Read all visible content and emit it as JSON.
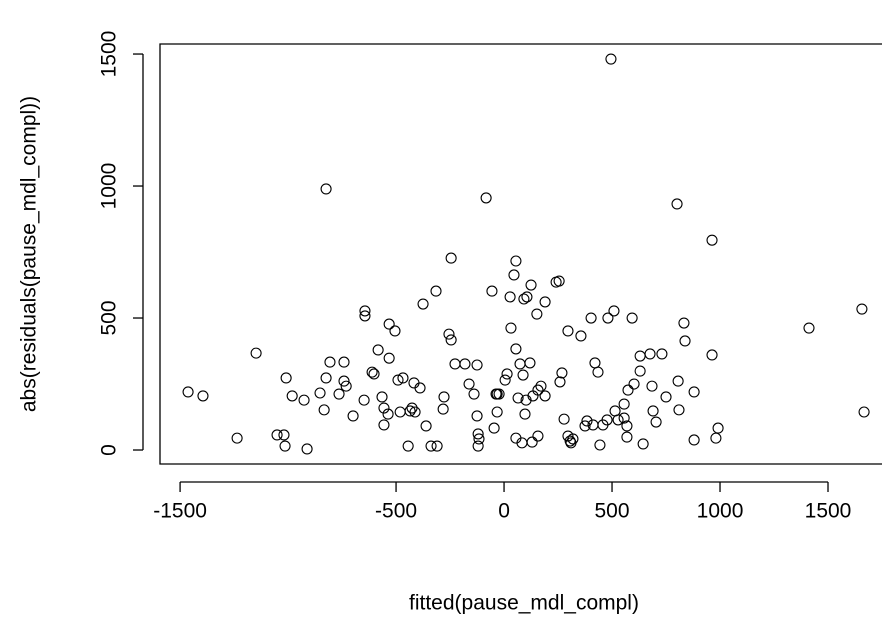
{
  "chart_data": {
    "type": "scatter",
    "x_label": "fitted(pause_mdl_compl)",
    "y_label": "abs(residuals(pause_mdl_compl))",
    "xlim": [
      -1593,
      1750
    ],
    "ylim": [
      -53,
      1538
    ],
    "xticks": [
      -1500,
      -500,
      0,
      500,
      1000,
      1500
    ],
    "yticks": [
      0,
      500,
      1000,
      1500
    ],
    "color": "#000000",
    "x": [
      -1463,
      -1394,
      -1236,
      -1148,
      -1051,
      -1019,
      -1014,
      -1009,
      -981,
      -926,
      -912,
      -852,
      -833,
      -824,
      -824,
      -806,
      -764,
      -741,
      -741,
      -731,
      -699,
      -648,
      -644,
      -644,
      -611,
      -602,
      -583,
      -565,
      -556,
      -556,
      -537,
      -532,
      -532,
      -505,
      -491,
      -481,
      -468,
      -444,
      -435,
      -426,
      -417,
      -412,
      -389,
      -375,
      -361,
      -338,
      -315,
      -310,
      -282,
      -278,
      -255,
      -245,
      -245,
      -227,
      -181,
      -162,
      -139,
      -125,
      -125,
      -120,
      -120,
      -116,
      -83,
      -56,
      -46,
      -37,
      -32,
      -32,
      -23,
      5,
      14,
      28,
      32,
      46,
      55,
      55,
      55,
      65,
      74,
      83,
      88,
      92,
      97,
      102,
      106,
      120,
      125,
      130,
      134,
      152,
      157,
      157,
      171,
      190,
      190,
      241,
      255,
      259,
      268,
      278,
      296,
      296,
      306,
      310,
      319,
      356,
      375,
      384,
      403,
      412,
      421,
      435,
      444,
      458,
      477,
      481,
      495,
      509,
      514,
      528,
      556,
      556,
      569,
      569,
      574,
      593,
      602,
      630,
      630,
      644,
      676,
      685,
      690,
      704,
      731,
      750,
      801,
      806,
      810,
      833,
      838,
      880,
      880,
      963,
      963,
      981,
      991,
      1412,
      1657,
      1667
    ],
    "y": [
      220,
      205,
      45,
      367,
      57,
      57,
      15,
      273,
      205,
      189,
      4,
      216,
      152,
      273,
      989,
      333,
      212,
      333,
      261,
      242,
      129,
      189,
      527,
      508,
      295,
      288,
      379,
      201,
      159,
      95,
      136,
      477,
      348,
      451,
      265,
      144,
      273,
      15,
      148,
      159,
      254,
      144,
      235,
      553,
      91,
      15,
      602,
      15,
      155,
      201,
      439,
      417,
      727,
      326,
      326,
      250,
      212,
      322,
      129,
      15,
      61,
      42,
      955,
      602,
      83,
      212,
      212,
      144,
      212,
      265,
      288,
      580,
      462,
      663,
      383,
      716,
      45,
      197,
      326,
      27,
      284,
      572,
      136,
      189,
      580,
      330,
      625,
      30,
      205,
      515,
      53,
      227,
      242,
      561,
      205,
      636,
      640,
      258,
      292,
      117,
      451,
      53,
      34,
      27,
      42,
      432,
      91,
      110,
      500,
      95,
      330,
      295,
      19,
      95,
      114,
      500,
      1481,
      527,
      148,
      114,
      121,
      174,
      91,
      49,
      227,
      500,
      250,
      299,
      356,
      23,
      364,
      242,
      148,
      106,
      364,
      201,
      932,
      261,
      152,
      481,
      413,
      220,
      38,
      795,
      360,
      45,
      83,
      462,
      534,
      144
    ]
  }
}
